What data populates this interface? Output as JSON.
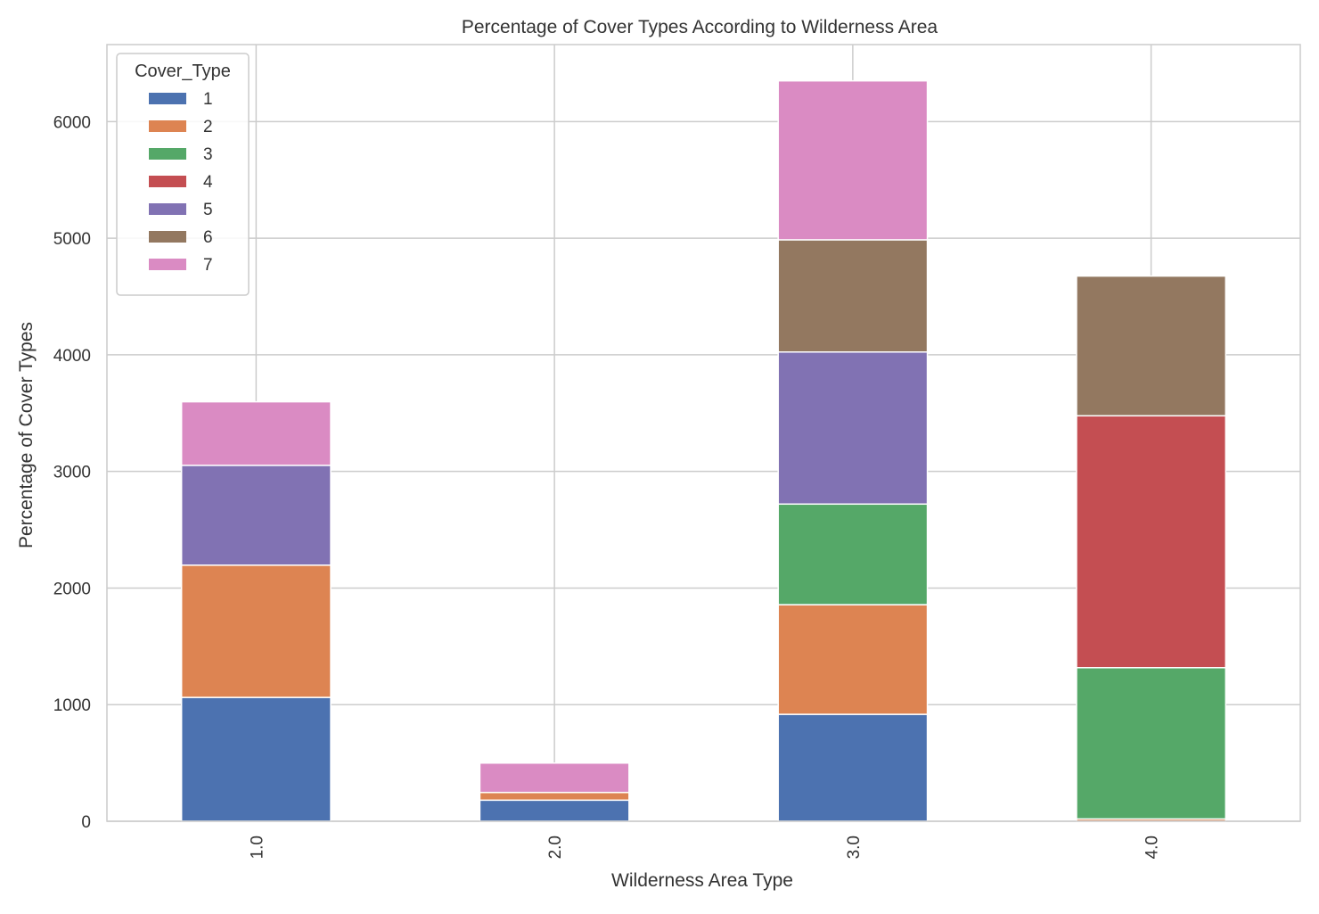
{
  "chart_data": {
    "type": "bar",
    "stacked": true,
    "title": "Percentage of Cover Types According to Wilderness Area",
    "xlabel": "Wilderness Area Type",
    "ylabel": "Percentage of Cover Types",
    "categories": [
      "1.0",
      "2.0",
      "3.0",
      "4.0"
    ],
    "y_ticks": [
      "0",
      "1000",
      "2000",
      "3000",
      "4000",
      "5000",
      "6000"
    ],
    "ylim": [
      0,
      6660
    ],
    "grid": true,
    "legend_title": "Cover_Type",
    "legend_position": "top-left",
    "series": [
      {
        "name": "1",
        "color": "#4C72B0",
        "values": [
          1062,
          181,
          917,
          0
        ]
      },
      {
        "name": "2",
        "color": "#DD8452",
        "values": [
          1134,
          66,
          940,
          20
        ]
      },
      {
        "name": "3",
        "color": "#55A868",
        "values": [
          0,
          0,
          863,
          1297
        ]
      },
      {
        "name": "4",
        "color": "#C44E52",
        "values": [
          0,
          0,
          0,
          2160
        ]
      },
      {
        "name": "5",
        "color": "#8172B3",
        "values": [
          856,
          0,
          1304,
          0
        ]
      },
      {
        "name": "6",
        "color": "#937860",
        "values": [
          0,
          0,
          962,
          1198
        ]
      },
      {
        "name": "7",
        "color": "#DA8BC3",
        "values": [
          545,
          252,
          1363,
          0
        ]
      }
    ]
  }
}
